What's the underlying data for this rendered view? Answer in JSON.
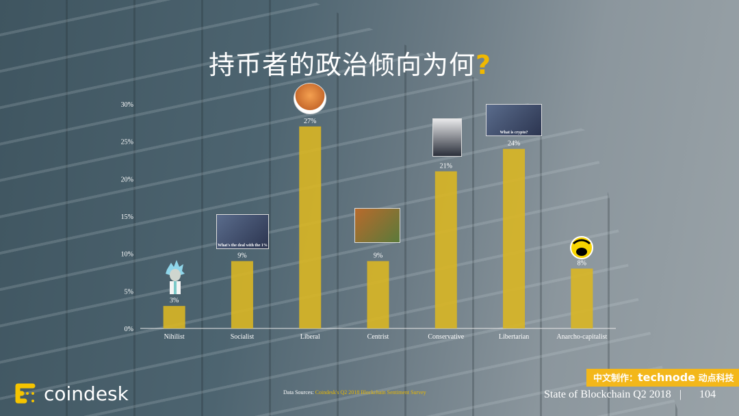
{
  "title": {
    "text": "持币者的政治倾向为何",
    "mark": "?"
  },
  "chart_data": {
    "type": "bar",
    "title": "持币者的政治倾向为何?",
    "categories": [
      "Nihilist",
      "Socialist",
      "Liberal",
      "Centrist",
      "Conservative",
      "Libertarian",
      "Anarcho-capitalist"
    ],
    "values": [
      3,
      9,
      27,
      9,
      21,
      24,
      8
    ],
    "data_labels": [
      "3%",
      "9%",
      "27%",
      "9%",
      "21%",
      "24%",
      "8%"
    ],
    "ylim": [
      0,
      30
    ],
    "yticks": [
      "0%",
      "5%",
      "10%",
      "15%",
      "20%",
      "25%",
      "30%"
    ],
    "xlabel": "",
    "ylabel": "",
    "grid": false,
    "bar_color": "#d9b623"
  },
  "image_captions": {
    "socialist": "What's the deal with the 1%",
    "libertarian": "What is crypto?"
  },
  "source": {
    "label": "Data Sources: ",
    "text": "Coindesk's Q2 2018 Blockchain Sentiment Survey"
  },
  "footer": {
    "report": "State of Blockchain Q2 2018",
    "separator": "|",
    "page": "104"
  },
  "badge": {
    "prefix": "中文制作：",
    "brand": "technode",
    "suffix": " 动点科技"
  },
  "logo": {
    "text": "coindesk",
    "color": "#f5c400"
  }
}
